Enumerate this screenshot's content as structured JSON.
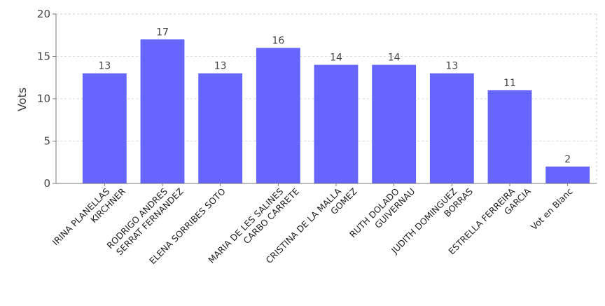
{
  "chart_data": {
    "type": "bar",
    "title": "",
    "xlabel": "",
    "ylabel": "Vots",
    "ylim": [
      0,
      20
    ],
    "yticks": [
      0,
      5,
      10,
      15,
      20
    ],
    "grid": true,
    "legend": "none",
    "bar_color": "#6666ff",
    "categories": [
      [
        "IRINA PLANELLAS",
        "KIRCHNER"
      ],
      [
        "RODRIGO ANDRES",
        "SERRAT FERNANDEZ"
      ],
      [
        "ELENA SORRIBES SOTO"
      ],
      [
        "MARIA DE LES SALINES",
        "CARBO CARRETE"
      ],
      [
        "CRISTINA DE LA MALLA",
        "GOMEZ"
      ],
      [
        "RUTH DOLADO",
        "GUIVERNAU"
      ],
      [
        "JUDITH DOMINGUEZ",
        "BORRAS"
      ],
      [
        "ESTRELLA FERREIRA",
        "GARCIA"
      ],
      [
        "Vot en Blanc"
      ]
    ],
    "values": [
      13,
      17,
      13,
      16,
      14,
      14,
      13,
      11,
      2
    ]
  }
}
